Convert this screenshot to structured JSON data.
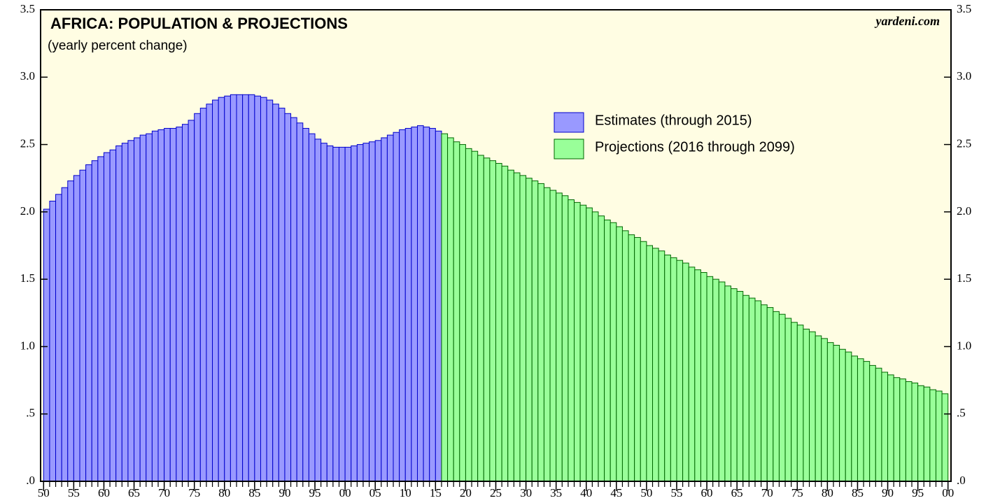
{
  "chart_data": {
    "type": "bar",
    "title": "AFRICA: POPULATION & PROJECTIONS",
    "subtitle": "(yearly percent change)",
    "source": "yardeni.com",
    "background": "#fffde3",
    "legend_position": "upper center",
    "xlim": [
      1949.5,
      2100.5
    ],
    "xticks": [
      {
        "value": 1950,
        "label": "50"
      },
      {
        "value": 1955,
        "label": "55"
      },
      {
        "value": 1960,
        "label": "60"
      },
      {
        "value": 1965,
        "label": "65"
      },
      {
        "value": 1970,
        "label": "70"
      },
      {
        "value": 1975,
        "label": "75"
      },
      {
        "value": 1980,
        "label": "80"
      },
      {
        "value": 1985,
        "label": "85"
      },
      {
        "value": 1990,
        "label": "90"
      },
      {
        "value": 1995,
        "label": "95"
      },
      {
        "value": 2000,
        "label": "00"
      },
      {
        "value": 2005,
        "label": "05"
      },
      {
        "value": 2010,
        "label": "10"
      },
      {
        "value": 2015,
        "label": "15"
      },
      {
        "value": 2020,
        "label": "20"
      },
      {
        "value": 2025,
        "label": "25"
      },
      {
        "value": 2030,
        "label": "30"
      },
      {
        "value": 2035,
        "label": "35"
      },
      {
        "value": 2040,
        "label": "40"
      },
      {
        "value": 2045,
        "label": "45"
      },
      {
        "value": 2050,
        "label": "50"
      },
      {
        "value": 2055,
        "label": "55"
      },
      {
        "value": 2060,
        "label": "60"
      },
      {
        "value": 2065,
        "label": "65"
      },
      {
        "value": 2070,
        "label": "70"
      },
      {
        "value": 2075,
        "label": "75"
      },
      {
        "value": 2080,
        "label": "80"
      },
      {
        "value": 2085,
        "label": "85"
      },
      {
        "value": 2090,
        "label": "90"
      },
      {
        "value": 2095,
        "label": "95"
      },
      {
        "value": 2100,
        "label": "00"
      }
    ],
    "ylim": [
      0,
      3.5
    ],
    "yticks": [
      {
        "value": 0,
        "label": ".0"
      },
      {
        "value": 0.5,
        "label": ".5"
      },
      {
        "value": 1,
        "label": "1.0"
      },
      {
        "value": 1.5,
        "label": "1.5"
      },
      {
        "value": 2,
        "label": "2.0"
      },
      {
        "value": 2.5,
        "label": "2.5"
      },
      {
        "value": 3,
        "label": "3.0"
      },
      {
        "value": 3.5,
        "label": "3.5"
      }
    ],
    "series": [
      {
        "name": "Estimates (through 2015)",
        "color": "#9999ff",
        "edge": "#0000cc",
        "x": [
          1950,
          1951,
          1952,
          1953,
          1954,
          1955,
          1956,
          1957,
          1958,
          1959,
          1960,
          1961,
          1962,
          1963,
          1964,
          1965,
          1966,
          1967,
          1968,
          1969,
          1970,
          1971,
          1972,
          1973,
          1974,
          1975,
          1976,
          1977,
          1978,
          1979,
          1980,
          1981,
          1982,
          1983,
          1984,
          1985,
          1986,
          1987,
          1988,
          1989,
          1990,
          1991,
          1992,
          1993,
          1994,
          1995,
          1996,
          1997,
          1998,
          1999,
          2000,
          2001,
          2002,
          2003,
          2004,
          2005,
          2006,
          2007,
          2008,
          2009,
          2010,
          2011,
          2012,
          2013,
          2014,
          2015
        ],
        "values": [
          2.02,
          2.08,
          2.13,
          2.18,
          2.23,
          2.27,
          2.31,
          2.35,
          2.38,
          2.41,
          2.44,
          2.46,
          2.49,
          2.51,
          2.53,
          2.55,
          2.57,
          2.58,
          2.6,
          2.61,
          2.62,
          2.62,
          2.63,
          2.65,
          2.68,
          2.73,
          2.77,
          2.8,
          2.83,
          2.85,
          2.86,
          2.87,
          2.87,
          2.87,
          2.87,
          2.86,
          2.85,
          2.83,
          2.8,
          2.77,
          2.73,
          2.7,
          2.66,
          2.62,
          2.58,
          2.54,
          2.51,
          2.49,
          2.48,
          2.48,
          2.48,
          2.49,
          2.5,
          2.51,
          2.52,
          2.53,
          2.55,
          2.57,
          2.59,
          2.61,
          2.62,
          2.63,
          2.64,
          2.63,
          2.62,
          2.6
        ]
      },
      {
        "name": "Projections (2016 through 2099)",
        "color": "#99ff99",
        "edge": "#006600",
        "x": [
          2016,
          2017,
          2018,
          2019,
          2020,
          2021,
          2022,
          2023,
          2024,
          2025,
          2026,
          2027,
          2028,
          2029,
          2030,
          2031,
          2032,
          2033,
          2034,
          2035,
          2036,
          2037,
          2038,
          2039,
          2040,
          2041,
          2042,
          2043,
          2044,
          2045,
          2046,
          2047,
          2048,
          2049,
          2050,
          2051,
          2052,
          2053,
          2054,
          2055,
          2056,
          2057,
          2058,
          2059,
          2060,
          2061,
          2062,
          2063,
          2064,
          2065,
          2066,
          2067,
          2068,
          2069,
          2070,
          2071,
          2072,
          2073,
          2074,
          2075,
          2076,
          2077,
          2078,
          2079,
          2080,
          2081,
          2082,
          2083,
          2084,
          2085,
          2086,
          2087,
          2088,
          2089,
          2090,
          2091,
          2092,
          2093,
          2094,
          2095,
          2096,
          2097,
          2098,
          2099
        ],
        "values": [
          2.58,
          2.55,
          2.52,
          2.5,
          2.47,
          2.45,
          2.42,
          2.4,
          2.38,
          2.36,
          2.34,
          2.31,
          2.29,
          2.27,
          2.25,
          2.23,
          2.21,
          2.18,
          2.16,
          2.14,
          2.12,
          2.09,
          2.07,
          2.05,
          2.03,
          2.0,
          1.97,
          1.94,
          1.92,
          1.89,
          1.86,
          1.83,
          1.81,
          1.78,
          1.75,
          1.73,
          1.71,
          1.68,
          1.66,
          1.64,
          1.62,
          1.59,
          1.57,
          1.55,
          1.52,
          1.5,
          1.48,
          1.45,
          1.43,
          1.41,
          1.38,
          1.36,
          1.34,
          1.31,
          1.29,
          1.26,
          1.24,
          1.21,
          1.18,
          1.16,
          1.13,
          1.11,
          1.08,
          1.06,
          1.03,
          1.01,
          0.98,
          0.96,
          0.93,
          0.91,
          0.89,
          0.86,
          0.84,
          0.81,
          0.79,
          0.77,
          0.76,
          0.74,
          0.73,
          0.71,
          0.7,
          0.68,
          0.67,
          0.65
        ]
      }
    ]
  }
}
